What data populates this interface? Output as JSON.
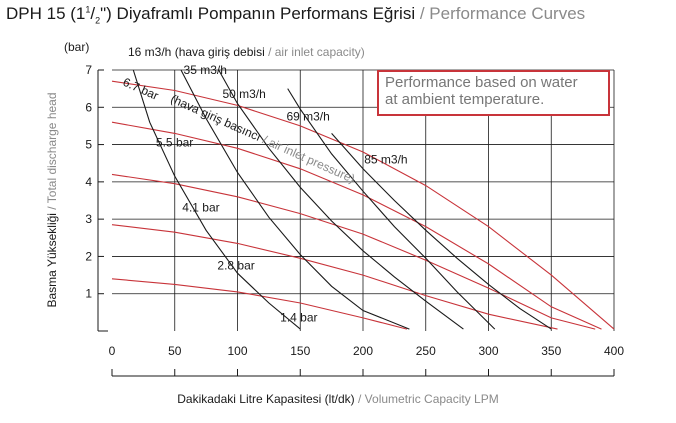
{
  "title": {
    "main": "DPH 15 (1",
    "frac_num": "1",
    "frac_den": "2",
    "main_rest": "\") Diyaframlı Pompanın Performans Eğrisi",
    "sep": " / ",
    "en": "Performance Curves"
  },
  "note": {
    "line1": "Performance based on water",
    "line2": "at ambient temperature."
  },
  "axis_labels": {
    "y_tr": "Basma Yüksekliği",
    "y_en": "Total discharge head",
    "y_unit": "(bar)",
    "x_tr": "Dakikadaki Litre Kapasitesi (lt/dk)",
    "x_en": "Volumetric Capacity LPM",
    "sep": " / "
  },
  "top_caption": {
    "tr": "16 m3/h (hava giriş debisi",
    "sep": " / ",
    "en": "air inlet capacity)"
  },
  "pressure_caption": {
    "tr": "(hava giriş basıncı",
    "sep": " / ",
    "en": "air inlet pressure)"
  },
  "colors": {
    "pressure_curve": "#c8343a",
    "air_curve": "#1a1a1a",
    "note_border": "#c8343a",
    "grid": "#1a1a1a",
    "gray_text": "#8a8a8a"
  },
  "chart_data": {
    "type": "line",
    "xlabel": "Dakikadaki Litre Kapasitesi (lt/dk) / Volumetric Capacity LPM",
    "ylabel": "Basma Yüksekliği / Total discharge head (bar)",
    "xlim": [
      0,
      400
    ],
    "ylim": [
      0,
      7
    ],
    "x_ticks": [
      "0",
      "50",
      "100",
      "150",
      "200",
      "250",
      "300",
      "350",
      "400"
    ],
    "y_ticks": [
      "1",
      "2",
      "3",
      "4",
      "5",
      "6",
      "7"
    ],
    "grid": true,
    "pressure_series": [
      {
        "name": "6.7 bar",
        "x": [
          0,
          50,
          100,
          150,
          200,
          250,
          300,
          350,
          400
        ],
        "y": [
          6.7,
          6.45,
          6.05,
          5.5,
          4.8,
          3.9,
          2.8,
          1.5,
          0.05
        ]
      },
      {
        "name": "5.5 bar",
        "x": [
          0,
          50,
          100,
          150,
          200,
          250,
          300,
          350,
          390
        ],
        "y": [
          5.6,
          5.3,
          4.9,
          4.35,
          3.65,
          2.8,
          1.8,
          0.65,
          0.05
        ]
      },
      {
        "name": "4.1 bar",
        "x": [
          0,
          50,
          100,
          150,
          200,
          250,
          300,
          350,
          385
        ],
        "y": [
          4.2,
          3.95,
          3.6,
          3.15,
          2.6,
          1.9,
          1.15,
          0.35,
          0.05
        ]
      },
      {
        "name": "2.8 bar",
        "x": [
          0,
          50,
          100,
          150,
          200,
          250,
          300,
          355
        ],
        "y": [
          2.85,
          2.65,
          2.35,
          1.95,
          1.5,
          0.95,
          0.45,
          0.05
        ]
      },
      {
        "name": "1.4 bar",
        "x": [
          0,
          50,
          100,
          150,
          200,
          235
        ],
        "y": [
          1.4,
          1.25,
          1.05,
          0.75,
          0.35,
          0.05
        ]
      }
    ],
    "air_series": [
      {
        "name": "16 m3/h",
        "x": [
          17,
          30,
          50,
          75,
          100,
          125,
          150
        ],
        "y": [
          7.0,
          5.6,
          4.15,
          2.7,
          1.55,
          0.75,
          0.05
        ]
      },
      {
        "name": "35 m3/h",
        "x": [
          55,
          75,
          100,
          125,
          150,
          175,
          200,
          237
        ],
        "y": [
          7.0,
          5.7,
          4.25,
          3.05,
          2.05,
          1.2,
          0.55,
          0.05
        ]
      },
      {
        "name": "50 m3/h",
        "x": [
          85,
          100,
          125,
          150,
          175,
          200,
          225,
          250,
          280
        ],
        "y": [
          7.0,
          6.1,
          4.9,
          3.85,
          2.95,
          2.15,
          1.45,
          0.8,
          0.05
        ]
      },
      {
        "name": "69 m3/h",
        "x": [
          140,
          150,
          175,
          200,
          225,
          250,
          275,
          305
        ],
        "y": [
          6.5,
          5.95,
          4.75,
          3.75,
          2.8,
          1.95,
          1.05,
          0.05
        ]
      },
      {
        "name": "85 m3/h",
        "x": [
          175,
          200,
          225,
          250,
          275,
          300,
          325,
          350
        ],
        "y": [
          5.3,
          4.35,
          3.5,
          2.7,
          1.95,
          1.25,
          0.6,
          0.05
        ]
      }
    ],
    "air_labels": [
      {
        "name": "16 m3/h"
      },
      {
        "name": "35 m3/h",
        "x": 57,
        "y": 7.0
      },
      {
        "name": "50 m3/h",
        "x": 88,
        "y": 6.35
      },
      {
        "name": "69 m3/h",
        "x": 139,
        "y": 5.75
      },
      {
        "name": "85 m3/h",
        "x": 201,
        "y": 4.6
      }
    ],
    "pressure_labels": [
      {
        "name": "6.7 bar",
        "x": 8,
        "y": 6.6
      },
      {
        "name": "5.5 bar",
        "x": 35,
        "y": 4.95
      },
      {
        "name": "4.1 bar",
        "x": 56,
        "y": 3.2
      },
      {
        "name": "2.8 bar",
        "x": 84,
        "y": 1.65
      },
      {
        "name": "1.4 bar",
        "x": 134,
        "y": 0.25
      }
    ]
  }
}
